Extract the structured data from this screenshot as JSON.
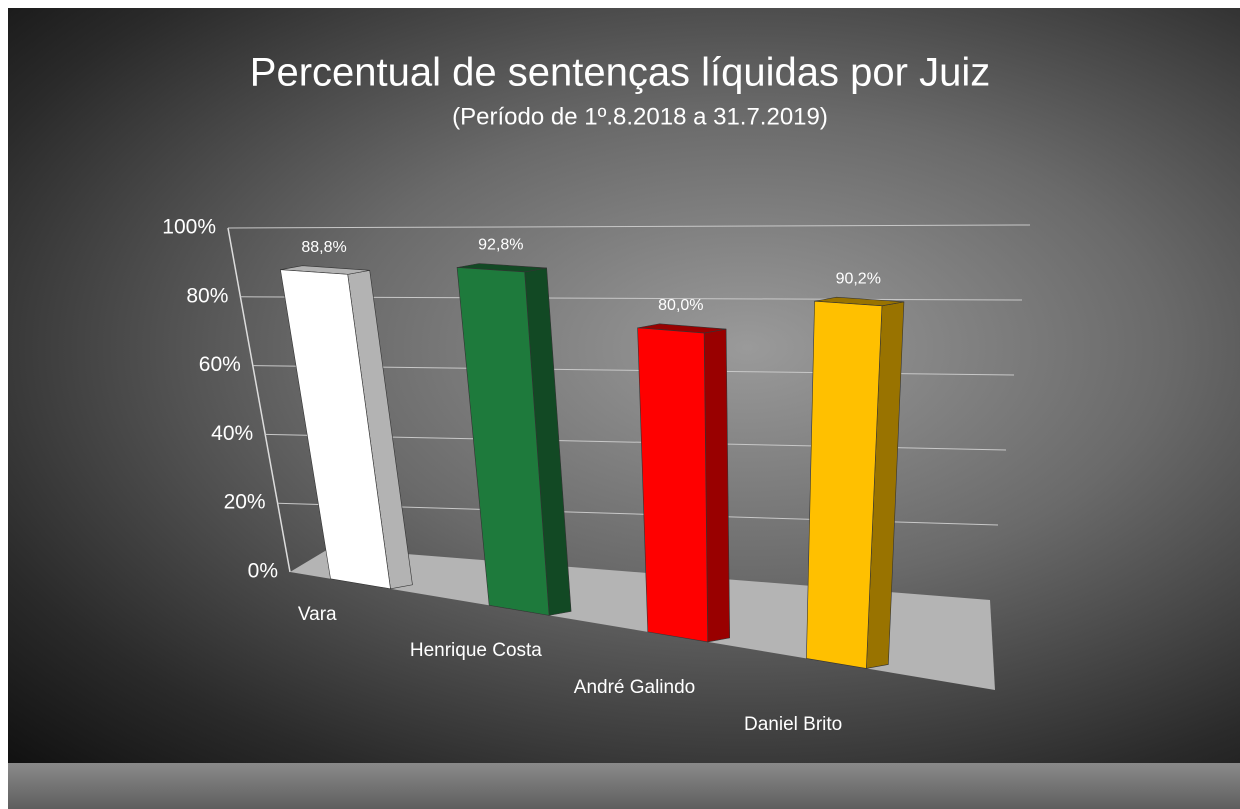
{
  "chart_data": {
    "type": "bar3d",
    "title": "Percentual de sentenças líquidas por Juiz",
    "subtitle": "(Período de 1º.8.2018  a  31.7.2019)",
    "categories": [
      "Vara",
      "Henrique Costa",
      "André Galindo",
      "Daniel Brito"
    ],
    "values": [
      88.8,
      92.8,
      80.0,
      90.2
    ],
    "value_labels": [
      "88,8%",
      "92,8%",
      "80,0%",
      "90,2%"
    ],
    "colors": [
      "#ffffff",
      "#1e7a3c",
      "#ff0000",
      "#ffc000"
    ],
    "ylim": [
      0,
      100
    ],
    "yticks": [
      {
        "value": 0,
        "label": "0%"
      },
      {
        "value": 20,
        "label": "20%"
      },
      {
        "value": 40,
        "label": "40%"
      },
      {
        "value": 60,
        "label": "60%"
      },
      {
        "value": 80,
        "label": "80%"
      },
      {
        "value": 100,
        "label": "100%"
      }
    ],
    "grid": true
  }
}
